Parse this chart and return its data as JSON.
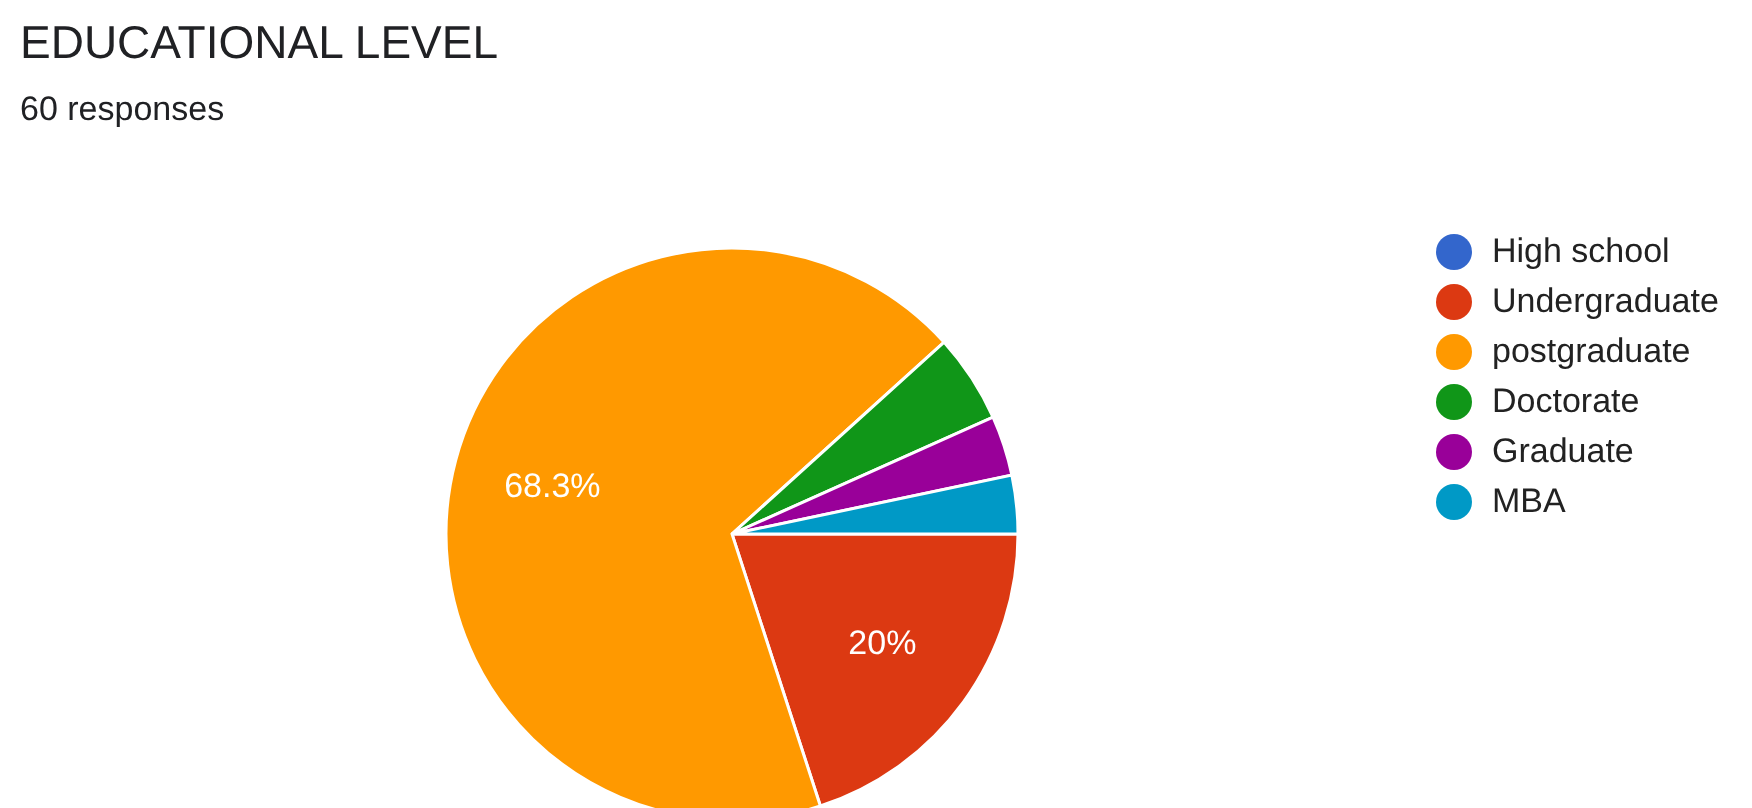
{
  "chart_data": {
    "type": "pie",
    "title": "EDUCATIONAL LEVEL",
    "subtitle": "60 responses",
    "categories": [
      "High school",
      "Undergraduate",
      "postgraduate",
      "Doctorate",
      "Graduate",
      "MBA"
    ],
    "values": [
      0,
      20,
      68.3,
      5,
      3.4,
      3.3
    ],
    "colors": [
      "#3366cc",
      "#dc3912",
      "#ff9900",
      "#109618",
      "#990099",
      "#0099c6"
    ],
    "value_labels": [
      null,
      "20%",
      "68.3%",
      null,
      null,
      null
    ],
    "legend": "right"
  }
}
